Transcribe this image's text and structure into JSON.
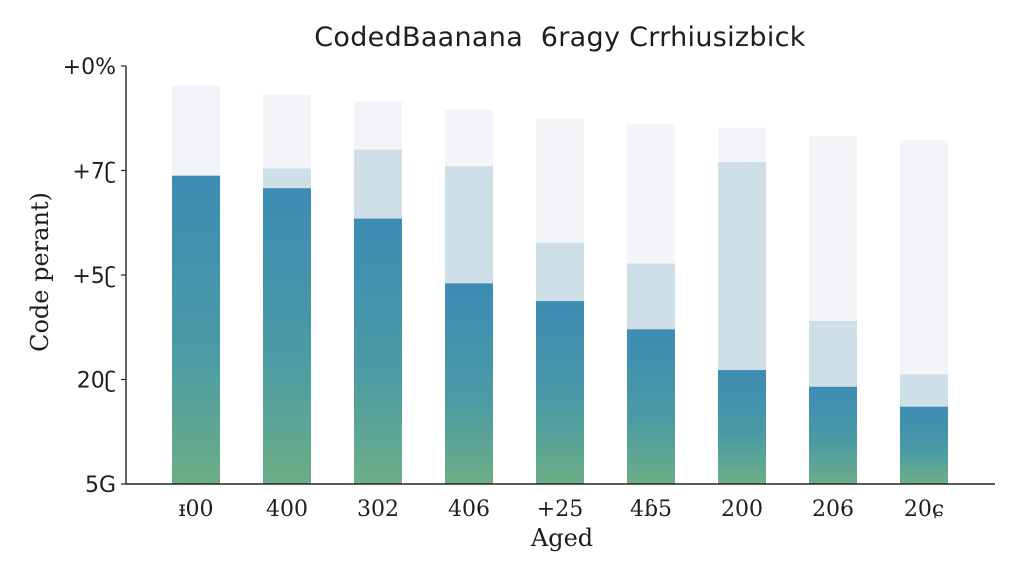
{
  "chart_data": {
    "type": "bar",
    "title": "CodedBaanana  6ragy Crrhiusizbick",
    "xlabel": "Aged",
    "ylabel": "Code perant)",
    "categories": [
      "ᵻ00",
      "400",
      "302",
      "406",
      "+25",
      "4ɓ5",
      "200",
      "206",
      "20ɕ"
    ],
    "ytick_labels": [
      "5G",
      "20ʗ",
      "+5ʗ",
      "+7ʗ",
      "+0%"
    ],
    "ylim": [
      0,
      4
    ],
    "series": [
      {
        "values": [
          2.95,
          2.83,
          2.54,
          1.92,
          1.75,
          1.48,
          1.09,
          0.93,
          0.74
        ],
        "color": "#3d8cb4"
      },
      {
        "values": [
          2.95,
          3.02,
          3.2,
          3.04,
          2.31,
          2.11,
          3.08,
          1.56,
          1.05
        ],
        "color": "#cfdfe8"
      },
      {
        "values": [
          3.81,
          3.73,
          3.66,
          3.58,
          3.5,
          3.45,
          3.41,
          3.33,
          3.29
        ],
        "color": "#f3f5f8"
      }
    ],
    "grid": false,
    "legend": "none"
  }
}
